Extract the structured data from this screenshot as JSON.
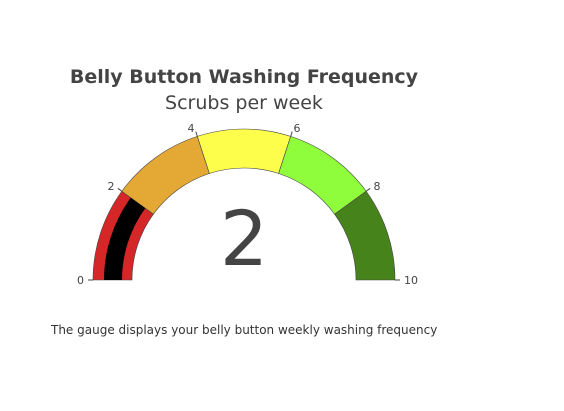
{
  "chart_data": {
    "type": "gauge",
    "title": "Belly Button Washing Frequency",
    "subtitle": "Scrubs per week",
    "value": 2,
    "value_label": "2",
    "range": [
      0,
      10
    ],
    "ticks": [
      0,
      2,
      4,
      6,
      8,
      10
    ],
    "tick_labels": [
      "0",
      "2",
      "4",
      "6",
      "8",
      "10"
    ],
    "steps": [
      {
        "range": [
          0,
          2
        ],
        "color": "#d62728"
      },
      {
        "range": [
          2,
          4
        ],
        "color": "#e4a935"
      },
      {
        "range": [
          4,
          6
        ],
        "color": "#fdfd4b"
      },
      {
        "range": [
          6,
          8
        ],
        "color": "#8ffd3b"
      },
      {
        "range": [
          8,
          10
        ],
        "color": "#46831a"
      }
    ],
    "bar_color": "#000000"
  },
  "caption": "The gauge displays your belly button weekly washing frequency"
}
